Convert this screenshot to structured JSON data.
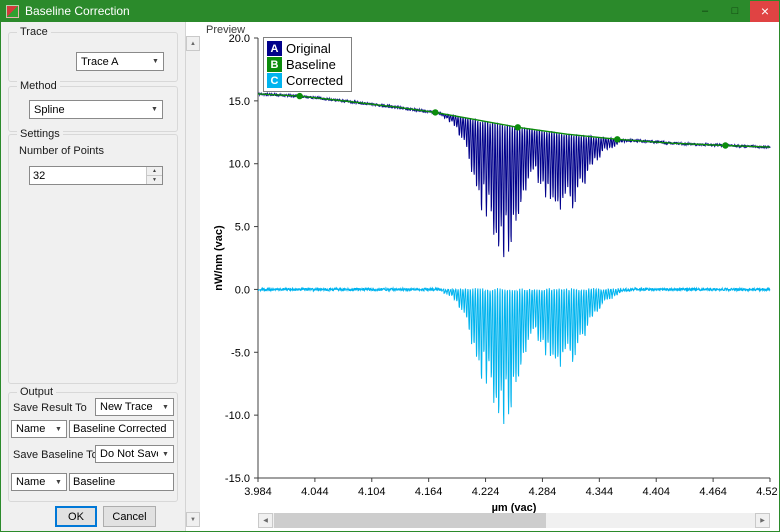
{
  "window": {
    "title": "Baseline Correction",
    "minimize": "–",
    "maximize": "□",
    "close": "×"
  },
  "colors": {
    "titlebar": "#2b8a2b",
    "close_button": "#e04343",
    "default_button_border": "#0078d7"
  },
  "icons": {
    "dropdown": "▼",
    "up": "▲",
    "down": "▼",
    "left": "◀",
    "right": "▶"
  },
  "panel": {
    "trace": {
      "label": "Trace",
      "value": "Trace A"
    },
    "method": {
      "label": "Method",
      "value": "Spline"
    },
    "settings": {
      "label": "Settings",
      "points_label": "Number of Points",
      "points_value": "32"
    },
    "output": {
      "label": "Output",
      "save_result_label": "Save Result To",
      "save_result_value": "New Trace",
      "result_name_label": "Name",
      "result_name_value": "Baseline Corrected",
      "save_baseline_label": "Save Baseline To",
      "save_baseline_value": "Do Not Save",
      "baseline_name_label": "Name",
      "baseline_name_value": "Baseline"
    },
    "ok": "OK",
    "cancel": "Cancel"
  },
  "preview": {
    "label": "Preview"
  },
  "chart_data": {
    "type": "line",
    "xlabel": "µm (vac)",
    "ylabel": "nW/nm (vac)",
    "xlim": [
      3.984,
      4.524
    ],
    "ylim": [
      -15.0,
      20.0
    ],
    "x_ticks": [
      3.984,
      4.044,
      4.104,
      4.164,
      4.224,
      4.284,
      4.344,
      4.404,
      4.464,
      4.524
    ],
    "y_ticks": [
      20.0,
      15.0,
      10.0,
      5.0,
      0.0,
      -5.0,
      -10.0,
      -15.0
    ],
    "legend": [
      {
        "key": "A",
        "label": "Original",
        "color": "#00008b"
      },
      {
        "key": "B",
        "label": "Baseline",
        "color": "#0c8c0c"
      },
      {
        "key": "C",
        "label": "Corrected",
        "color": "#00b4ef"
      }
    ],
    "baseline_points": [
      [
        3.984,
        15.55
      ],
      [
        4.028,
        15.38
      ],
      [
        4.08,
        14.95
      ],
      [
        4.13,
        14.5
      ],
      [
        4.171,
        14.08
      ],
      [
        4.21,
        13.55
      ],
      [
        4.258,
        12.9
      ],
      [
        4.31,
        12.35
      ],
      [
        4.363,
        11.94
      ],
      [
        4.42,
        11.63
      ],
      [
        4.477,
        11.45
      ],
      [
        4.524,
        11.32
      ]
    ],
    "baseline_markers": [
      [
        4.028,
        15.38
      ],
      [
        4.171,
        14.08
      ],
      [
        4.258,
        12.9
      ],
      [
        4.363,
        11.94
      ],
      [
        4.477,
        11.45
      ]
    ],
    "absorption_envelope": [
      [
        4.175,
        0
      ],
      [
        4.19,
        0.8
      ],
      [
        4.205,
        3.0
      ],
      [
        4.218,
        7.0
      ],
      [
        4.232,
        10.5
      ],
      [
        4.245,
        11.5
      ],
      [
        4.258,
        10.0
      ],
      [
        4.268,
        5.5
      ],
      [
        4.276,
        3.8
      ],
      [
        4.288,
        6.0
      ],
      [
        4.302,
        7.0
      ],
      [
        4.315,
        6.3
      ],
      [
        4.328,
        4.2
      ],
      [
        4.34,
        2.2
      ],
      [
        4.352,
        1.0
      ],
      [
        4.365,
        0.3
      ],
      [
        4.378,
        0
      ]
    ],
    "comb_period": 0.0026,
    "noise_amplitude": 0.09
  }
}
